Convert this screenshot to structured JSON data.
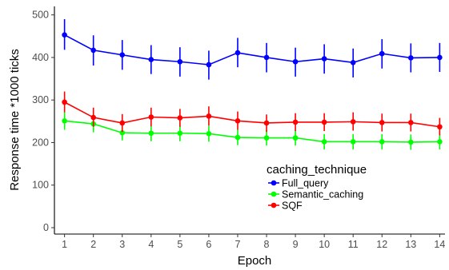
{
  "chart_data": {
    "type": "line",
    "xlabel": "Epoch",
    "ylabel": "Response time *1000 ticks",
    "x": [
      1,
      2,
      3,
      4,
      5,
      6,
      7,
      8,
      9,
      10,
      11,
      12,
      13,
      14
    ],
    "xlim": [
      0.65,
      14.35
    ],
    "ylim": [
      -15,
      520
    ],
    "yticks": [
      0,
      100,
      200,
      300,
      400,
      500
    ],
    "grid": false,
    "error_bars": true,
    "legend": {
      "title": "caching_technique",
      "placement": "right"
    },
    "series": [
      {
        "name": "Full_query",
        "color": "#0000ff",
        "values": [
          453,
          417,
          406,
          395,
          390,
          383,
          411,
          400,
          390,
          397,
          388,
          409,
          399,
          400
        ],
        "err_low": [
          418,
          381,
          371,
          361,
          355,
          348,
          377,
          365,
          355,
          362,
          353,
          374,
          365,
          366
        ],
        "err_high": [
          490,
          452,
          441,
          429,
          424,
          416,
          446,
          434,
          423,
          431,
          421,
          443,
          433,
          434
        ]
      },
      {
        "name": "Semantic_caching",
        "color": "#00ff00",
        "values": [
          251,
          244,
          223,
          222,
          222,
          221,
          212,
          211,
          211,
          202,
          202,
          202,
          201,
          202
        ],
        "err_low": [
          230,
          224,
          205,
          203,
          203,
          202,
          194,
          193,
          193,
          184,
          184,
          184,
          183,
          184
        ],
        "err_high": [
          272,
          265,
          242,
          241,
          241,
          240,
          230,
          229,
          229,
          220,
          220,
          220,
          219,
          220
        ]
      },
      {
        "name": "SQF",
        "color": "#ff0000",
        "values": [
          295,
          259,
          246,
          260,
          258,
          262,
          251,
          246,
          248,
          248,
          249,
          247,
          247,
          237
        ],
        "err_low": [
          271,
          237,
          225,
          238,
          237,
          240,
          230,
          225,
          227,
          227,
          228,
          226,
          226,
          217
        ],
        "err_high": [
          320,
          282,
          267,
          282,
          279,
          285,
          273,
          266,
          269,
          269,
          271,
          268,
          268,
          258
        ]
      }
    ]
  }
}
